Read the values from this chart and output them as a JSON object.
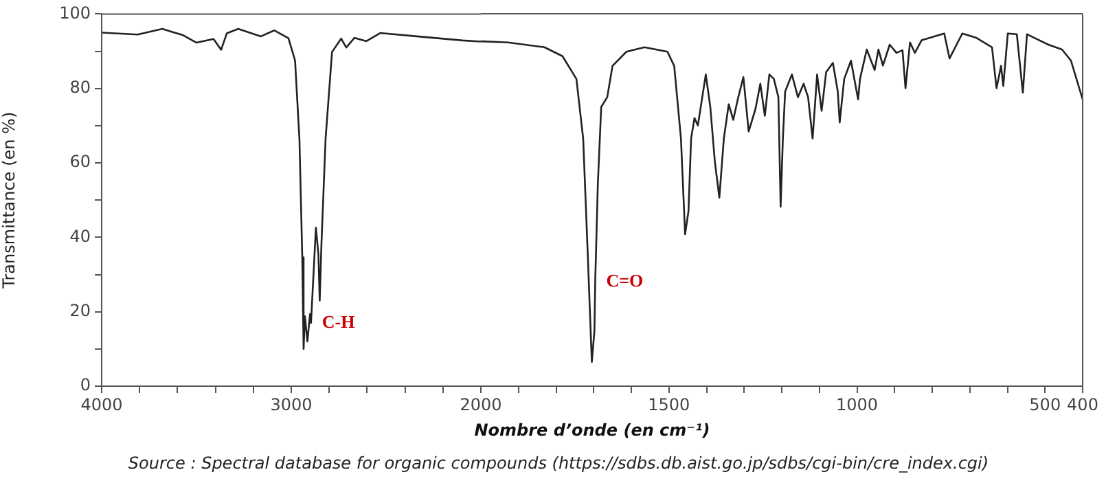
{
  "chart_data": [
    {
      "type": "line",
      "ylabel": "Transmittance (en %)",
      "color": "#222222",
      "marker": "none",
      "x": [
        4000,
        3810,
        3680,
        3570,
        3500,
        3410,
        3370,
        3340,
        3280,
        3160,
        3090,
        3015,
        2980,
        2957,
        2942,
        2935,
        2928,
        2915,
        2901,
        2896,
        2870,
        2857,
        2850,
        2841,
        2819,
        2785,
        2737,
        2710,
        2667,
        2604,
        2531,
        2338,
        2096,
        2000
      ],
      "values": [
        95,
        94.5,
        96,
        94.3,
        92.3,
        93.3,
        90.4,
        94.8,
        96,
        94,
        95.6,
        93.5,
        87.5,
        66.5,
        34.6,
        10,
        18.8,
        12,
        19.4,
        17,
        42.6,
        35.5,
        23,
        38,
        66.5,
        89.8,
        93.4,
        91,
        93.6,
        92.7,
        94.9,
        94,
        92.9,
        92.6
      ],
      "xlim": [
        4000,
        2000
      ],
      "xticks": [
        4000,
        {
          "value": 3800,
          "label": null
        },
        {
          "value": 3600,
          "label": null
        },
        {
          "value": 3400,
          "label": null
        },
        {
          "value": 3200,
          "label": null
        },
        3000,
        {
          "value": 2800,
          "label": null
        },
        {
          "value": 2600,
          "label": null
        },
        {
          "value": 2400,
          "label": null
        },
        {
          "value": 2200,
          "label": null
        }
      ],
      "ylim": [
        0,
        100
      ],
      "yticks": [
        0,
        {
          "value": 10,
          "label": null
        },
        20,
        {
          "value": 30,
          "label": null
        },
        40,
        {
          "value": 50,
          "label": null
        },
        60,
        {
          "value": 70,
          "label": null
        },
        80,
        {
          "value": 90,
          "label": null
        },
        100
      ],
      "annotations": [
        {
          "text": "C-H",
          "x": 2896,
          "y": 17
        }
      ]
    },
    {
      "type": "line",
      "xlabel": "Nombre d’onde (en cm⁻¹)",
      "color": "#222222",
      "marker": "none",
      "tick_labels": "x",
      "x": [
        2000,
        1928,
        1831,
        1783,
        1746,
        1728,
        1716,
        1705,
        1698,
        1696,
        1689,
        1680,
        1664,
        1650,
        1613,
        1565,
        1504,
        1486,
        1468,
        1457,
        1448,
        1441,
        1432,
        1423,
        1402,
        1390,
        1378,
        1366,
        1354,
        1341,
        1329,
        1317,
        1302,
        1288,
        1270,
        1257,
        1245,
        1233,
        1221,
        1209,
        1203,
        1197,
        1191,
        1173,
        1157,
        1142,
        1130,
        1118,
        1106,
        1094,
        1082,
        1064,
        1051,
        1046,
        1034,
        1016,
        997,
        992,
        974,
        953,
        943,
        931,
        913,
        895,
        879,
        871,
        859,
        846,
        828,
        768,
        754,
        720,
        684,
        641,
        629,
        617,
        611,
        599,
        575,
        559,
        548,
        491,
        455,
        431,
        400
      ],
      "values": [
        92.6,
        92.3,
        91,
        88.6,
        82.5,
        66.5,
        35.9,
        6.5,
        15,
        28,
        54.3,
        75,
        77.6,
        86,
        89.8,
        91,
        89.8,
        86,
        66.5,
        40.8,
        47,
        66.5,
        72,
        70,
        83.7,
        75,
        60.4,
        50.6,
        66.5,
        75.7,
        71.5,
        77,
        83,
        68.4,
        74.4,
        81.2,
        72.6,
        83.7,
        82.5,
        77.6,
        48.2,
        66.5,
        79.1,
        83.7,
        77.6,
        81.2,
        77.6,
        66.5,
        83.7,
        73.9,
        84.3,
        86.8,
        79.1,
        70.8,
        82.5,
        87.4,
        77,
        82.5,
        90.4,
        84.9,
        90.4,
        86.1,
        91.7,
        89.5,
        90.2,
        80,
        92.3,
        89.5,
        92.9,
        94.7,
        88,
        94.7,
        93.6,
        91,
        80,
        86,
        80.6,
        94.7,
        94.5,
        78.8,
        94.5,
        91.7,
        90.4,
        87.4,
        77
      ],
      "xlim": [
        2000,
        400
      ],
      "xticks": [
        2000,
        {
          "value": 1900,
          "label": null
        },
        {
          "value": 1800,
          "label": null
        },
        {
          "value": 1700,
          "label": null
        },
        {
          "value": 1600,
          "label": null
        },
        1500,
        {
          "value": 1400,
          "label": null
        },
        {
          "value": 1300,
          "label": null
        },
        {
          "value": 1200,
          "label": null
        },
        {
          "value": 1100,
          "label": null
        },
        1000,
        {
          "value": 900,
          "label": null
        },
        {
          "value": 800,
          "label": null
        },
        {
          "value": 700,
          "label": null
        },
        {
          "value": 600,
          "label": null
        },
        500,
        400
      ],
      "ylim": [
        0,
        100
      ],
      "annotations": [
        {
          "text": "C=O",
          "x": 1696,
          "y": 28
        },
        "Source : Spectral database for organic compounds (https://sdbs.db.aist.go.jp/sdbs/cgi-bin/cre_index.cgi)"
      ]
    }
  ]
}
